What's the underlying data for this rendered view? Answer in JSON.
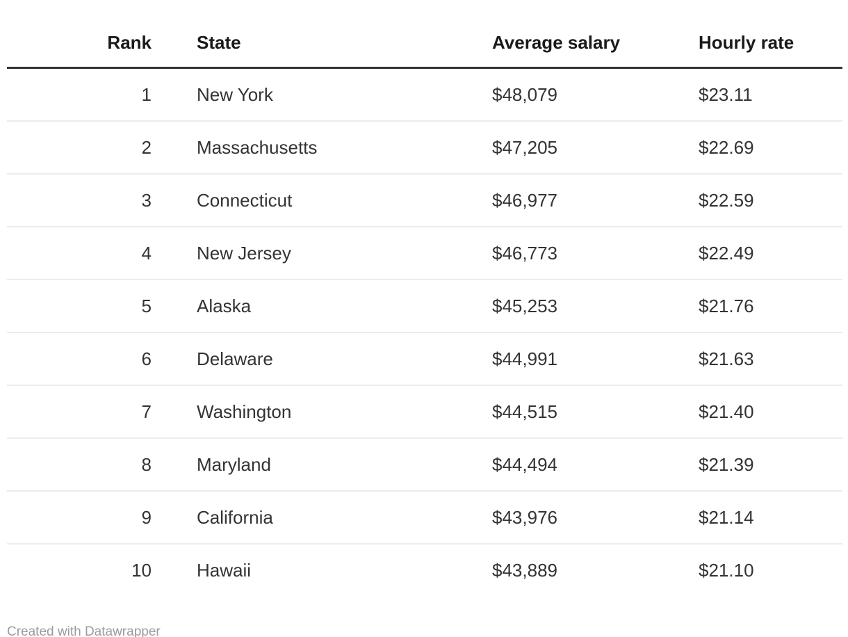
{
  "table": {
    "columns": [
      {
        "key": "rank",
        "label": "Rank",
        "align": "right"
      },
      {
        "key": "state",
        "label": "State",
        "align": "left"
      },
      {
        "key": "salary",
        "label": "Average salary",
        "align": "left"
      },
      {
        "key": "hourly",
        "label": "Hourly rate",
        "align": "left"
      }
    ],
    "rows": [
      {
        "rank": "1",
        "state": "New York",
        "salary": "$48,079",
        "hourly": "$23.11"
      },
      {
        "rank": "2",
        "state": "Massachusetts",
        "salary": "$47,205",
        "hourly": "$22.69"
      },
      {
        "rank": "3",
        "state": "Connecticut",
        "salary": "$46,977",
        "hourly": "$22.59"
      },
      {
        "rank": "4",
        "state": "New Jersey",
        "salary": "$46,773",
        "hourly": "$22.49"
      },
      {
        "rank": "5",
        "state": "Alaska",
        "salary": "$45,253",
        "hourly": "$21.76"
      },
      {
        "rank": "6",
        "state": "Delaware",
        "salary": "$44,991",
        "hourly": "$21.63"
      },
      {
        "rank": "7",
        "state": "Washington",
        "salary": "$44,515",
        "hourly": "$21.40"
      },
      {
        "rank": "8",
        "state": "Maryland",
        "salary": "$44,494",
        "hourly": "$21.39"
      },
      {
        "rank": "9",
        "state": "California",
        "salary": "$43,976",
        "hourly": "$21.14"
      },
      {
        "rank": "10",
        "state": "Hawaii",
        "salary": "$43,889",
        "hourly": "$21.10"
      }
    ]
  },
  "chart_data": {
    "type": "table",
    "columns": [
      "Rank",
      "State",
      "Average salary",
      "Hourly rate"
    ],
    "rows": [
      [
        1,
        "New York",
        48079,
        23.11
      ],
      [
        2,
        "Massachusetts",
        47205,
        22.69
      ],
      [
        3,
        "Connecticut",
        46977,
        22.59
      ],
      [
        4,
        "New Jersey",
        46773,
        22.49
      ],
      [
        5,
        "Alaska",
        45253,
        21.76
      ],
      [
        6,
        "Delaware",
        44991,
        21.63
      ],
      [
        7,
        "Washington",
        44515,
        21.4
      ],
      [
        8,
        "Maryland",
        44494,
        21.39
      ],
      [
        9,
        "California",
        43976,
        21.14
      ],
      [
        10,
        "Hawaii",
        43889,
        21.1
      ]
    ],
    "title": "",
    "legend_position": "none",
    "grid": "horizontal-row-separators"
  },
  "footer": {
    "credit": "Created with Datawrapper"
  },
  "colors": {
    "background": "#ffffff",
    "header_text": "#1a1a1a",
    "body_text": "#333333",
    "header_border": "#333333",
    "row_border": "#ececec",
    "footer_text": "#9b9b9b"
  }
}
